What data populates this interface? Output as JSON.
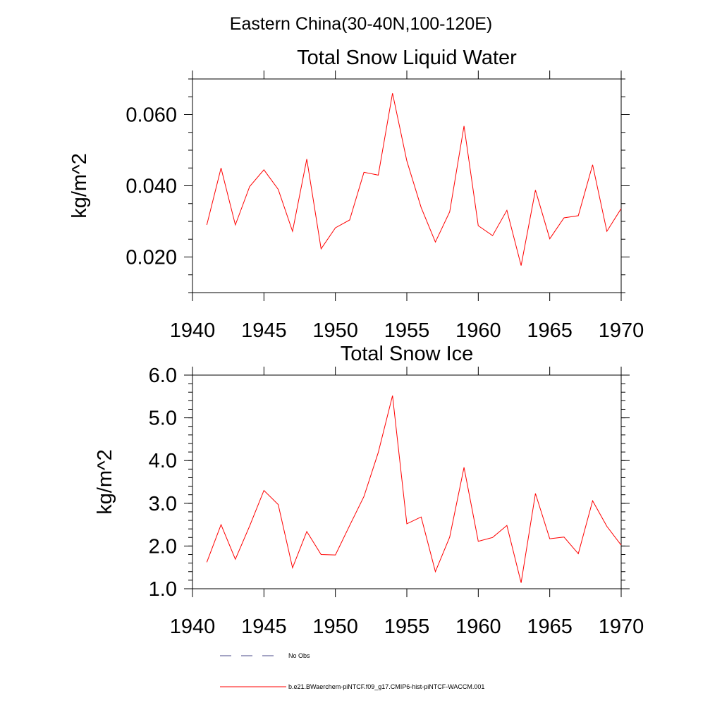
{
  "figure_title": "Eastern China(30-40N,100-120E)",
  "line_color": "#ff0000",
  "obs_color": "#4a4a8a",
  "legend": {
    "no_obs": "No Obs",
    "model": "b.e21.BWaerchem-piNTCF.f09_g17.CMIP6-hist-piNTCF-WACCM.001"
  },
  "chart_data": [
    {
      "type": "line",
      "title": "Total Snow Liquid Water",
      "xlabel": "",
      "ylabel": "kg/m^2",
      "xlim": [
        1940,
        1970
      ],
      "ylim": [
        0.01,
        0.07
      ],
      "xticks": [
        1940,
        1945,
        1950,
        1955,
        1960,
        1965,
        1970
      ],
      "yticks": [
        0.02,
        0.04,
        0.06
      ],
      "ytick_labels": [
        "0.020",
        "0.040",
        "0.060"
      ],
      "series": [
        {
          "name": "b.e21.BWaerchem-piNTCF.f09_g17.CMIP6-hist-piNTCF-WACCM.001",
          "x": [
            1941,
            1942,
            1943,
            1944,
            1945,
            1946,
            1947,
            1948,
            1949,
            1950,
            1951,
            1952,
            1953,
            1954,
            1955,
            1956,
            1957,
            1958,
            1959,
            1960,
            1961,
            1962,
            1963,
            1964,
            1965,
            1966,
            1967,
            1968,
            1969,
            1970
          ],
          "values": [
            0.029,
            0.045,
            0.029,
            0.0398,
            0.0445,
            0.039,
            0.0272,
            0.0475,
            0.0223,
            0.0282,
            0.0304,
            0.0438,
            0.043,
            0.066,
            0.047,
            0.0339,
            0.0242,
            0.0327,
            0.0568,
            0.0288,
            0.026,
            0.0331,
            0.0176,
            0.0388,
            0.0251,
            0.031,
            0.0316,
            0.0459,
            0.0272,
            0.0336
          ]
        }
      ]
    },
    {
      "type": "line",
      "title": "Total Snow Ice",
      "xlabel": "",
      "ylabel": "kg/m^2",
      "xlim": [
        1940,
        1970
      ],
      "ylim": [
        1.0,
        6.0
      ],
      "xticks": [
        1940,
        1945,
        1950,
        1955,
        1960,
        1965,
        1970
      ],
      "yticks": [
        1.0,
        2.0,
        3.0,
        4.0,
        5.0,
        6.0
      ],
      "ytick_labels": [
        "1.0",
        "2.0",
        "3.0",
        "4.0",
        "5.0",
        "6.0"
      ],
      "series": [
        {
          "name": "b.e21.BWaerchem-piNTCF.f09_g17.CMIP6-hist-piNTCF-WACCM.001",
          "x": [
            1941,
            1942,
            1943,
            1944,
            1945,
            1946,
            1947,
            1948,
            1949,
            1950,
            1951,
            1952,
            1953,
            1954,
            1955,
            1956,
            1957,
            1958,
            1959,
            1960,
            1961,
            1962,
            1963,
            1964,
            1965,
            1966,
            1967,
            1968,
            1969,
            1970
          ],
          "values": [
            1.62,
            2.5,
            1.69,
            2.47,
            3.3,
            2.97,
            1.49,
            2.34,
            1.8,
            1.79,
            2.48,
            3.16,
            4.19,
            5.52,
            2.52,
            2.68,
            1.4,
            2.21,
            3.84,
            2.11,
            2.2,
            2.48,
            1.14,
            3.23,
            2.17,
            2.21,
            1.82,
            3.06,
            2.46,
            2.02
          ]
        }
      ]
    }
  ]
}
